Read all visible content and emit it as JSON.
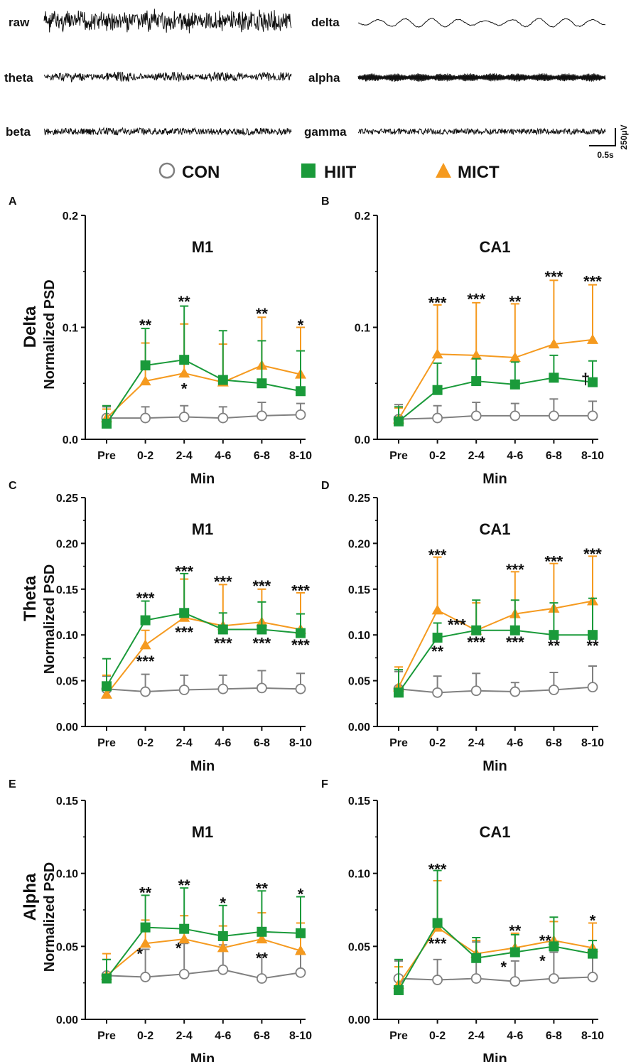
{
  "traces": {
    "labels": [
      "raw",
      "delta",
      "theta",
      "alpha",
      "beta",
      "gamma"
    ],
    "scale_voltage": "250μV",
    "scale_time": "0.5s"
  },
  "legend": {
    "entries": [
      {
        "name": "CON",
        "marker": "circle-open",
        "color": "#808080"
      },
      {
        "name": "HIIT",
        "marker": "square",
        "color": "#1a9a3a"
      },
      {
        "name": "MICT",
        "marker": "triangle",
        "color": "#f59a1f"
      }
    ]
  },
  "colors": {
    "con": "#808080",
    "hiit": "#1a9a3a",
    "mict": "#f59a1f",
    "text": "#111111"
  },
  "row_labels": {
    "delta": "Delta",
    "theta": "Theta",
    "alpha": "Alpha",
    "ylabel": "Normalized PSD"
  },
  "chart_data": [
    {
      "panel": "A",
      "type": "line",
      "title": "M1",
      "xlabel": "Min",
      "ylabel": "Normalized PSD",
      "categories": [
        "Pre",
        "0-2",
        "2-4",
        "4-6",
        "6-8",
        "8-10"
      ],
      "ylim": [
        0,
        0.2
      ],
      "yticks": [
        "0.0",
        "0.1",
        "0.2"
      ],
      "series": [
        {
          "name": "CON",
          "values": [
            0.019,
            0.019,
            0.02,
            0.019,
            0.021,
            0.022
          ],
          "err": [
            0.01,
            0.01,
            0.01,
            0.01,
            0.012,
            0.01
          ]
        },
        {
          "name": "HIIT",
          "values": [
            0.014,
            0.066,
            0.071,
            0.053,
            0.05,
            0.043
          ],
          "err": [
            0.016,
            0.033,
            0.048,
            0.044,
            0.038,
            0.036
          ]
        },
        {
          "name": "MICT",
          "values": [
            0.019,
            0.052,
            0.059,
            0.051,
            0.066,
            0.058
          ],
          "err": [
            0.008,
            0.034,
            0.044,
            0.034,
            0.043,
            0.042
          ]
        }
      ],
      "annotations": [
        {
          "x": "0-2",
          "y": 0.101,
          "text": "**"
        },
        {
          "x": "2-4",
          "y": 0.122,
          "text": "**"
        },
        {
          "x": "2-4",
          "y": 0.044,
          "text": "*"
        },
        {
          "x": "6-8",
          "y": 0.111,
          "text": "**"
        },
        {
          "x": "8-10",
          "y": 0.101,
          "text": "*"
        }
      ]
    },
    {
      "panel": "B",
      "type": "line",
      "title": "CA1",
      "xlabel": "Min",
      "ylabel": "Normalized PSD",
      "categories": [
        "Pre",
        "0-2",
        "2-4",
        "4-6",
        "6-8",
        "8-10"
      ],
      "ylim": [
        0,
        0.2
      ],
      "yticks": [
        "0.0",
        "0.1",
        "0.2"
      ],
      "series": [
        {
          "name": "CON",
          "values": [
            0.018,
            0.019,
            0.021,
            0.021,
            0.021,
            0.021
          ],
          "err": [
            0.013,
            0.011,
            0.012,
            0.011,
            0.015,
            0.013
          ]
        },
        {
          "name": "HIIT",
          "values": [
            0.016,
            0.044,
            0.052,
            0.049,
            0.055,
            0.051
          ],
          "err": [
            0.013,
            0.024,
            0.02,
            0.02,
            0.02,
            0.019
          ]
        },
        {
          "name": "MICT",
          "values": [
            0.018,
            0.076,
            0.075,
            0.073,
            0.085,
            0.089
          ],
          "err": [
            0.01,
            0.044,
            0.047,
            0.048,
            0.057,
            0.049
          ]
        }
      ],
      "annotations": [
        {
          "x": "0-2",
          "y": 0.121,
          "text": "***"
        },
        {
          "x": "2-4",
          "y": 0.124,
          "text": "***"
        },
        {
          "x": "4-6",
          "y": 0.122,
          "text": "**"
        },
        {
          "x": "6-8",
          "y": 0.144,
          "text": "***"
        },
        {
          "x": "8-10",
          "y": 0.14,
          "text": "***"
        },
        {
          "x": "8-10",
          "y": 0.053,
          "text": "†",
          "dx": -10
        }
      ]
    },
    {
      "panel": "C",
      "type": "line",
      "title": "M1",
      "xlabel": "Min",
      "ylabel": "Normalized PSD",
      "categories": [
        "Pre",
        "0-2",
        "2-4",
        "4-6",
        "6-8",
        "8-10"
      ],
      "ylim": [
        0,
        0.25
      ],
      "yticks": [
        "0.00",
        "0.05",
        "0.10",
        "0.15",
        "0.20",
        "0.25"
      ],
      "series": [
        {
          "name": "CON",
          "values": [
            0.041,
            0.038,
            0.04,
            0.041,
            0.042,
            0.041
          ],
          "err": [
            0.014,
            0.019,
            0.016,
            0.015,
            0.019,
            0.017
          ]
        },
        {
          "name": "HIIT",
          "values": [
            0.044,
            0.116,
            0.124,
            0.106,
            0.106,
            0.102
          ],
          "err": [
            0.03,
            0.021,
            0.043,
            0.018,
            0.03,
            0.021
          ]
        },
        {
          "name": "MICT",
          "values": [
            0.035,
            0.089,
            0.119,
            0.11,
            0.114,
            0.106
          ],
          "err": [
            0.021,
            0.016,
            0.042,
            0.045,
            0.036,
            0.04
          ]
        }
      ],
      "annotations": [
        {
          "x": "0-2",
          "y": 0.139,
          "text": "***"
        },
        {
          "x": "0-2",
          "y": 0.076,
          "text": "***",
          "below": true
        },
        {
          "x": "2-4",
          "y": 0.168,
          "text": "***"
        },
        {
          "x": "2-4",
          "y": 0.108,
          "text": "***",
          "below": true
        },
        {
          "x": "4-6",
          "y": 0.157,
          "text": "***"
        },
        {
          "x": "4-6",
          "y": 0.096,
          "text": "***",
          "below": true
        },
        {
          "x": "6-8",
          "y": 0.152,
          "text": "***"
        },
        {
          "x": "6-8",
          "y": 0.096,
          "text": "***",
          "below": true
        },
        {
          "x": "8-10",
          "y": 0.147,
          "text": "***"
        },
        {
          "x": "8-10",
          "y": 0.094,
          "text": "***",
          "below": true
        }
      ]
    },
    {
      "panel": "D",
      "type": "line",
      "title": "CA1",
      "xlabel": "Min",
      "ylabel": "Normalized PSD",
      "categories": [
        "Pre",
        "0-2",
        "2-4",
        "4-6",
        "6-8",
        "8-10"
      ],
      "ylim": [
        0,
        0.25
      ],
      "yticks": [
        "0.00",
        "0.05",
        "0.10",
        "0.15",
        "0.20",
        "0.25"
      ],
      "series": [
        {
          "name": "CON",
          "values": [
            0.041,
            0.037,
            0.039,
            0.038,
            0.04,
            0.043
          ],
          "err": [
            0.019,
            0.018,
            0.019,
            0.01,
            0.019,
            0.023
          ]
        },
        {
          "name": "HIIT",
          "values": [
            0.037,
            0.097,
            0.105,
            0.105,
            0.1,
            0.1
          ],
          "err": [
            0.025,
            0.016,
            0.033,
            0.033,
            0.035,
            0.04
          ]
        },
        {
          "name": "MICT",
          "values": [
            0.043,
            0.127,
            0.105,
            0.123,
            0.129,
            0.137
          ],
          "err": [
            0.022,
            0.058,
            0.03,
            0.046,
            0.049,
            0.049
          ]
        }
      ],
      "annotations": [
        {
          "x": "0-2",
          "y": 0.186,
          "text": "***"
        },
        {
          "x": "0-2",
          "y": 0.087,
          "text": "**",
          "below": true
        },
        {
          "x": "1.5",
          "y": 0.11,
          "text": "***"
        },
        {
          "x": "2-4",
          "y": 0.097,
          "text": "***",
          "below": true
        },
        {
          "x": "4-6",
          "y": 0.17,
          "text": "***"
        },
        {
          "x": "4-6",
          "y": 0.097,
          "text": "***",
          "below": true
        },
        {
          "x": "6-8",
          "y": 0.179,
          "text": "***"
        },
        {
          "x": "6-8",
          "y": 0.093,
          "text": "**",
          "below": true
        },
        {
          "x": "8-10",
          "y": 0.187,
          "text": "***"
        },
        {
          "x": "8-10",
          "y": 0.093,
          "text": "**",
          "below": true
        }
      ]
    },
    {
      "panel": "E",
      "type": "line",
      "title": "M1",
      "xlabel": "Min",
      "ylabel": "Normalized PSD",
      "categories": [
        "Pre",
        "0-2",
        "2-4",
        "4-6",
        "6-8",
        "8-10"
      ],
      "ylim": [
        0,
        0.15
      ],
      "yticks": [
        "0.00",
        "0.05",
        "0.10",
        "0.15"
      ],
      "series": [
        {
          "name": "CON",
          "values": [
            0.03,
            0.029,
            0.031,
            0.034,
            0.028,
            0.032
          ],
          "err": [
            0.011,
            0.019,
            0.021,
            0.017,
            0.016,
            0.014
          ]
        },
        {
          "name": "HIIT",
          "values": [
            0.028,
            0.063,
            0.062,
            0.057,
            0.06,
            0.059
          ],
          "err": [
            0.013,
            0.022,
            0.028,
            0.021,
            0.028,
            0.025
          ]
        },
        {
          "name": "MICT",
          "values": [
            0.03,
            0.052,
            0.055,
            0.049,
            0.055,
            0.047
          ],
          "err": [
            0.015,
            0.016,
            0.016,
            0.015,
            0.018,
            0.019
          ]
        }
      ],
      "annotations": [
        {
          "x": "0-2",
          "y": 0.086,
          "text": "**"
        },
        {
          "x": "0-2",
          "y": 0.044,
          "text": "*",
          "dx": -8
        },
        {
          "x": "2-4",
          "y": 0.091,
          "text": "**"
        },
        {
          "x": "2-4",
          "y": 0.048,
          "text": "*",
          "dx": -8
        },
        {
          "x": "4-6",
          "y": 0.079,
          "text": "*"
        },
        {
          "x": "6-8",
          "y": 0.089,
          "text": "**"
        },
        {
          "x": "6-8",
          "y": 0.045,
          "text": "**",
          "below": true
        },
        {
          "x": "8-10",
          "y": 0.085,
          "text": "*"
        }
      ]
    },
    {
      "panel": "F",
      "type": "line",
      "title": "CA1",
      "xlabel": "Min",
      "ylabel": "Normalized PSD",
      "categories": [
        "Pre",
        "0-2",
        "2-4",
        "4-6",
        "6-8",
        "8-10"
      ],
      "ylim": [
        0,
        0.15
      ],
      "yticks": [
        "0.00",
        "0.05",
        "0.10",
        "0.15"
      ],
      "series": [
        {
          "name": "CON",
          "values": [
            0.028,
            0.027,
            0.028,
            0.026,
            0.028,
            0.029
          ],
          "err": [
            0.012,
            0.014,
            0.025,
            0.014,
            0.018,
            0.015
          ]
        },
        {
          "name": "HIIT",
          "values": [
            0.02,
            0.066,
            0.042,
            0.046,
            0.05,
            0.045
          ],
          "err": [
            0.021,
            0.036,
            0.014,
            0.012,
            0.02,
            0.009
          ]
        },
        {
          "name": "MICT",
          "values": [
            0.024,
            0.063,
            0.045,
            0.049,
            0.054,
            0.049
          ],
          "err": [
            0.012,
            0.032,
            0.009,
            0.01,
            0.013,
            0.017
          ]
        }
      ],
      "annotations": [
        {
          "x": "0-2",
          "y": 0.102,
          "text": "***"
        },
        {
          "x": "0-2",
          "y": 0.055,
          "text": "***",
          "below": true
        },
        {
          "x": "4-6",
          "y": 0.06,
          "text": "**"
        },
        {
          "x": "4-6",
          "y": 0.039,
          "text": "*",
          "dx": -16,
          "below": true
        },
        {
          "x": "6-8",
          "y": 0.053,
          "text": "**",
          "dx": -12
        },
        {
          "x": "6-8",
          "y": 0.043,
          "text": "*",
          "dx": -16,
          "below": true
        },
        {
          "x": "8-10",
          "y": 0.067,
          "text": "*"
        }
      ]
    }
  ]
}
